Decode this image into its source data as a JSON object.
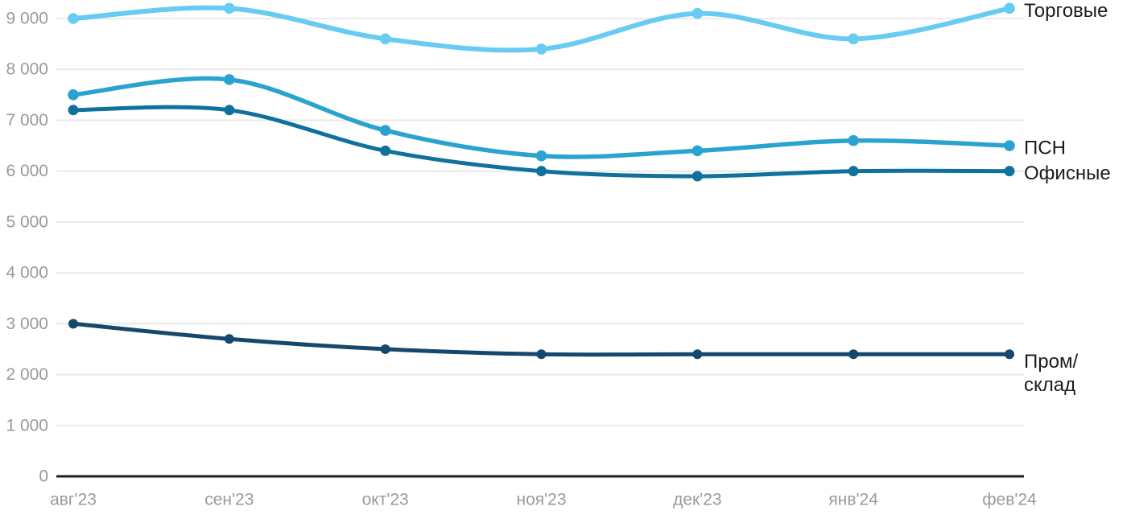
{
  "chart_data": {
    "type": "line",
    "title": "",
    "categories": [
      "авг'23",
      "сен'23",
      "окт'23",
      "ноя'23",
      "дек'23",
      "янв'24",
      "фев'24"
    ],
    "series": [
      {
        "name": "Торговые",
        "color": "#67CBF2",
        "values": [
          9000,
          9200,
          8600,
          8400,
          9100,
          8600,
          9200
        ],
        "label_lines": [
          "Торговые"
        ]
      },
      {
        "name": "ПСН",
        "color": "#2BA3D1",
        "values": [
          7500,
          7800,
          6800,
          6300,
          6400,
          6600,
          6500
        ],
        "label_lines": [
          "ПСН"
        ]
      },
      {
        "name": "Офисные",
        "color": "#10719C",
        "values": [
          7200,
          7200,
          6400,
          6000,
          5900,
          6000,
          6000
        ],
        "label_lines": [
          "Офисные"
        ]
      },
      {
        "name": "Пром/склад",
        "color": "#16476C",
        "values": [
          3000,
          2700,
          2500,
          2400,
          2400,
          2400,
          2400
        ],
        "label_lines": [
          "Пром/",
          "склад"
        ]
      }
    ],
    "y_axis": {
      "ylim": [
        0,
        9000
      ],
      "ticks": [
        0,
        1000,
        2000,
        3000,
        4000,
        5000,
        6000,
        7000,
        8000,
        9000
      ],
      "tick_labels": [
        "0",
        "1 000",
        "2 000",
        "3 000",
        "4 000",
        "5 000",
        "6 000",
        "7 000",
        "8 000",
        "9 000"
      ]
    },
    "xlabel": "",
    "ylabel": "",
    "grid": true,
    "legend_position": "right-end-labels",
    "colors": {
      "background": "#ffffff",
      "gridline": "#e7e7e7",
      "axis_line": "#1f1f1f",
      "axis_label": "#9a9a9a",
      "series_label": "#1c1c1c"
    }
  }
}
